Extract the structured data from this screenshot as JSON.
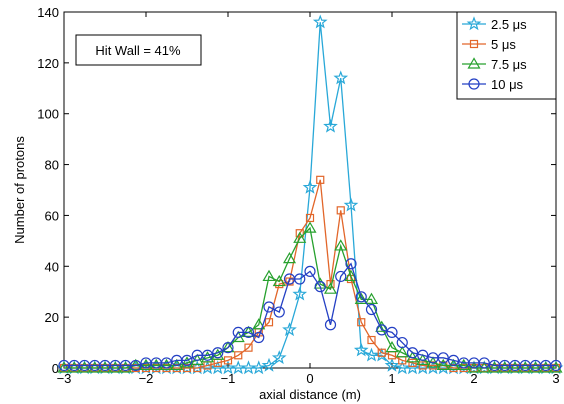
{
  "chart_data": {
    "type": "line",
    "xlabel": "axial distance (m)",
    "ylabel": "Number of protons",
    "xlim": [
      -3,
      3
    ],
    "ylim": [
      0,
      140
    ],
    "xticks": [
      "−3",
      "−2",
      "−1",
      "0",
      "1",
      "2",
      "3"
    ],
    "yticks": [
      "0",
      "20",
      "40",
      "60",
      "80",
      "100",
      "120",
      "140"
    ],
    "grid": false,
    "legend_position": "top-right",
    "annotation": "Hit Wall = 41%",
    "series": [
      {
        "name": "2.5 μs",
        "color": "#29a8d8",
        "marker": "star",
        "x": [
          -3.0,
          -2.875,
          -2.75,
          -2.625,
          -2.5,
          -2.375,
          -2.25,
          -2.125,
          -2.0,
          -1.875,
          -1.75,
          -1.625,
          -1.5,
          -1.375,
          -1.25,
          -1.125,
          -1.0,
          -0.875,
          -0.75,
          -0.625,
          -0.5,
          -0.375,
          -0.25,
          -0.125,
          0.0,
          0.125,
          0.25,
          0.375,
          0.5,
          0.625,
          0.75,
          0.875,
          1.0,
          1.125,
          1.25,
          1.375,
          1.5,
          1.625,
          1.75,
          1.875,
          2.0,
          2.125,
          2.25,
          2.375,
          2.5,
          2.625,
          2.75,
          2.875,
          3.0
        ],
        "values": [
          0,
          0,
          0,
          0,
          0,
          0,
          0,
          0,
          0,
          0,
          0,
          0,
          0,
          0,
          0,
          0,
          0,
          0,
          0,
          0,
          1,
          4,
          15,
          29,
          71,
          136,
          95,
          114,
          64,
          7,
          5,
          5,
          1,
          0,
          0,
          0,
          0,
          0,
          0,
          0,
          0,
          0,
          0,
          0,
          0,
          0,
          0,
          0,
          0
        ]
      },
      {
        "name": "5 μs",
        "color": "#e2662a",
        "marker": "square",
        "x": [
          -3.0,
          -2.875,
          -2.75,
          -2.625,
          -2.5,
          -2.375,
          -2.25,
          -2.125,
          -2.0,
          -1.875,
          -1.75,
          -1.625,
          -1.5,
          -1.375,
          -1.25,
          -1.125,
          -1.0,
          -0.875,
          -0.75,
          -0.625,
          -0.5,
          -0.375,
          -0.25,
          -0.125,
          0.0,
          0.125,
          0.25,
          0.375,
          0.5,
          0.625,
          0.75,
          0.875,
          1.0,
          1.125,
          1.25,
          1.375,
          1.5,
          1.625,
          1.75,
          1.875,
          2.0,
          2.125,
          2.25,
          2.375,
          2.5,
          2.625,
          2.75,
          2.875,
          3.0
        ],
        "values": [
          0,
          0,
          0,
          0,
          0,
          0,
          0,
          0,
          0,
          0,
          0,
          0,
          0,
          0,
          1,
          2,
          3,
          5,
          8,
          14,
          18,
          33,
          34,
          53,
          59,
          74,
          33,
          62,
          35,
          18,
          11,
          6,
          5,
          3,
          2,
          1,
          1,
          1,
          0,
          0,
          0,
          0,
          0,
          0,
          0,
          0,
          0,
          0,
          0
        ]
      },
      {
        "name": "7.5 μs",
        "color": "#27a12e",
        "marker": "triangle",
        "x": [
          -3.0,
          -2.875,
          -2.75,
          -2.625,
          -2.5,
          -2.375,
          -2.25,
          -2.125,
          -2.0,
          -1.875,
          -1.75,
          -1.625,
          -1.5,
          -1.375,
          -1.25,
          -1.125,
          -1.0,
          -0.875,
          -0.75,
          -0.625,
          -0.5,
          -0.375,
          -0.25,
          -0.125,
          0.0,
          0.125,
          0.25,
          0.375,
          0.5,
          0.625,
          0.75,
          0.875,
          1.0,
          1.125,
          1.25,
          1.375,
          1.5,
          1.625,
          1.75,
          1.875,
          2.0,
          2.125,
          2.25,
          2.375,
          2.5,
          2.625,
          2.75,
          2.875,
          3.0
        ],
        "values": [
          0,
          0,
          0,
          0,
          0,
          0,
          0,
          1,
          1,
          1,
          1,
          1,
          2,
          3,
          4,
          5,
          8,
          12,
          14,
          17,
          36,
          34,
          43,
          51,
          55,
          33,
          31,
          48,
          36,
          27,
          27,
          16,
          8,
          6,
          4,
          3,
          2,
          1,
          1,
          1,
          0,
          0,
          0,
          0,
          0,
          0,
          0,
          0,
          0
        ]
      },
      {
        "name": "10 μs",
        "color": "#2440c4",
        "marker": "circle",
        "x": [
          -3.0,
          -2.875,
          -2.75,
          -2.625,
          -2.5,
          -2.375,
          -2.25,
          -2.125,
          -2.0,
          -1.875,
          -1.75,
          -1.625,
          -1.5,
          -1.375,
          -1.25,
          -1.125,
          -1.0,
          -0.875,
          -0.75,
          -0.625,
          -0.5,
          -0.375,
          -0.25,
          -0.125,
          0.0,
          0.125,
          0.25,
          0.375,
          0.5,
          0.625,
          0.75,
          0.875,
          1.0,
          1.125,
          1.25,
          1.375,
          1.5,
          1.625,
          1.75,
          1.875,
          2.0,
          2.125,
          2.25,
          2.375,
          2.5,
          2.625,
          2.75,
          2.875,
          3.0
        ],
        "values": [
          1,
          1,
          1,
          1,
          1,
          1,
          1,
          1,
          2,
          2,
          2,
          3,
          3,
          5,
          5,
          6,
          8,
          14,
          14,
          12,
          24,
          22,
          35,
          35,
          38,
          32,
          17,
          36,
          41,
          28,
          23,
          15,
          14,
          10,
          6,
          5,
          4,
          4,
          3,
          2,
          2,
          2,
          1,
          1,
          1,
          1,
          1,
          1,
          1
        ]
      }
    ]
  }
}
